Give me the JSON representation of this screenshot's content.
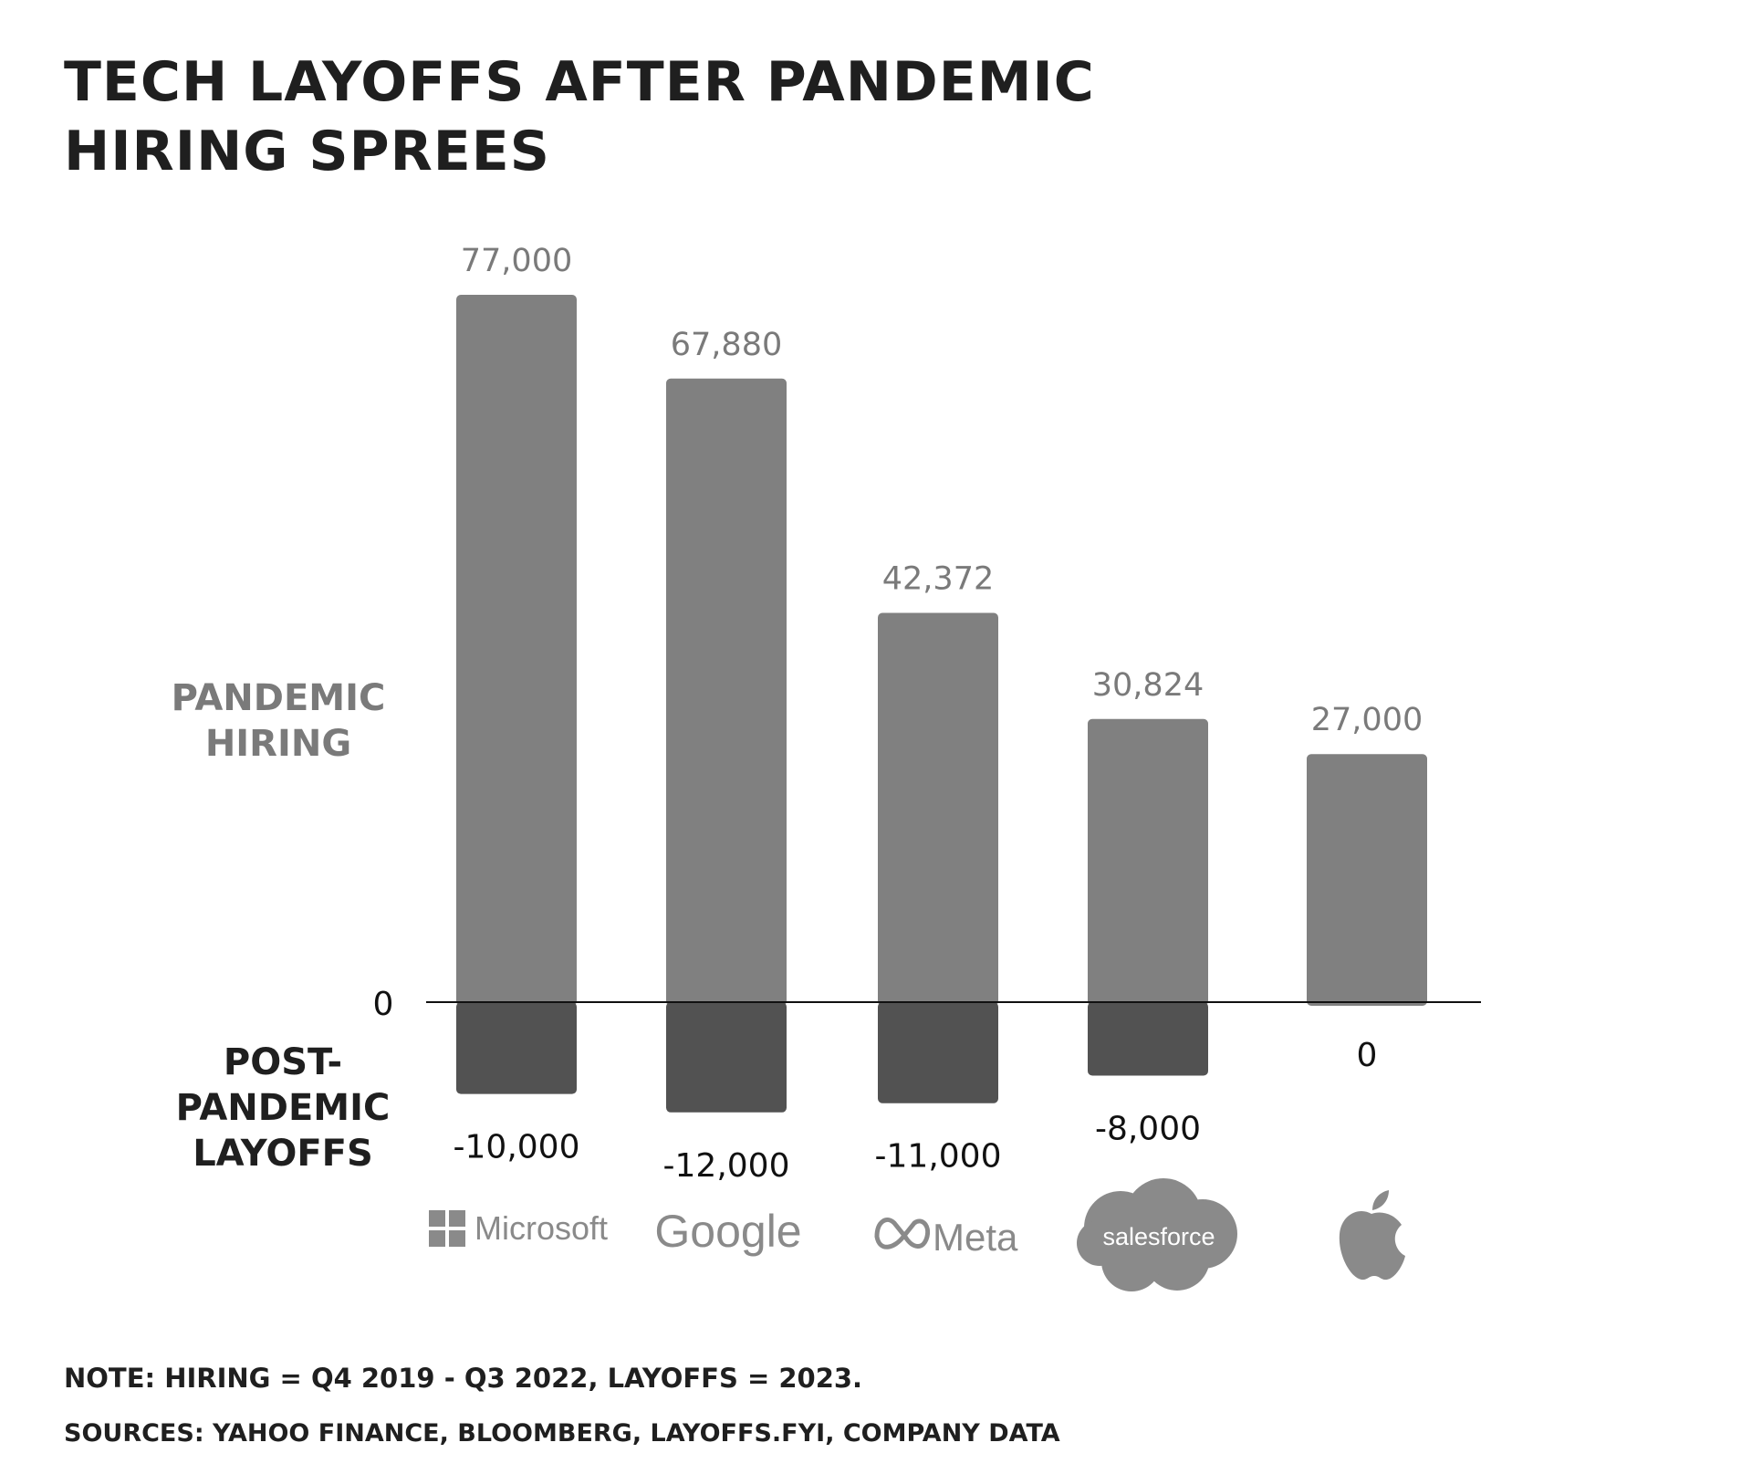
{
  "title_lines": [
    "TECH LAYOFFS AFTER PANDEMIC",
    "HIRING SPREES"
  ],
  "labels": {
    "hiring": [
      "PANDEMIC",
      "HIRING"
    ],
    "layoffs": [
      "POST-",
      "PANDEMIC",
      "LAYOFFS"
    ],
    "zero": "0"
  },
  "logos": [
    {
      "company": "Microsoft",
      "icon": "microsoft-logo-icon",
      "text": "Microsoft"
    },
    {
      "company": "Google",
      "icon": "google-logo-icon",
      "text": "Google"
    },
    {
      "company": "Meta",
      "icon": "meta-logo-icon",
      "text": "Meta"
    },
    {
      "company": "Salesforce",
      "icon": "salesforce-logo-icon",
      "text": "salesforce"
    },
    {
      "company": "Apple",
      "icon": "apple-logo-icon",
      "text": ""
    }
  ],
  "colors": {
    "hiring_bar": "#808080",
    "layoff_bar": "#525252",
    "hiring_label": "#7a7a7a",
    "layoff_label": "#111111",
    "text_dark": "#1f1f1f",
    "logo_gray": "#8a8a8a"
  },
  "chart_data": {
    "type": "bar",
    "categories": [
      "Microsoft",
      "Google",
      "Meta",
      "Salesforce",
      "Apple"
    ],
    "series": [
      {
        "name": "PANDEMIC HIRING",
        "values": [
          77000,
          67880,
          42372,
          30824,
          27000
        ],
        "labels": [
          "77,000",
          "67,880",
          "42,372",
          "30,824",
          "27,000"
        ]
      },
      {
        "name": "POST-PANDEMIC LAYOFFS",
        "values": [
          -10000,
          -12000,
          -11000,
          -8000,
          0
        ],
        "labels": [
          "-10,000",
          "-12,000",
          "-11,000",
          "-8,000",
          "0"
        ]
      }
    ],
    "stacked": true,
    "ylim": [
      -12000,
      77000
    ],
    "grid": false,
    "title": "TECH LAYOFFS AFTER PANDEMIC HIRING SPREES",
    "xlabel": "",
    "ylabel": ""
  },
  "notes": {
    "note": "NOTE: HIRING = Q4 2019 - Q3 2022, LAYOFFS = 2023.",
    "sources": "SOURCES: YAHOO FINANCE, BLOOMBERG, LAYOFFS.FYI, COMPANY DATA"
  }
}
